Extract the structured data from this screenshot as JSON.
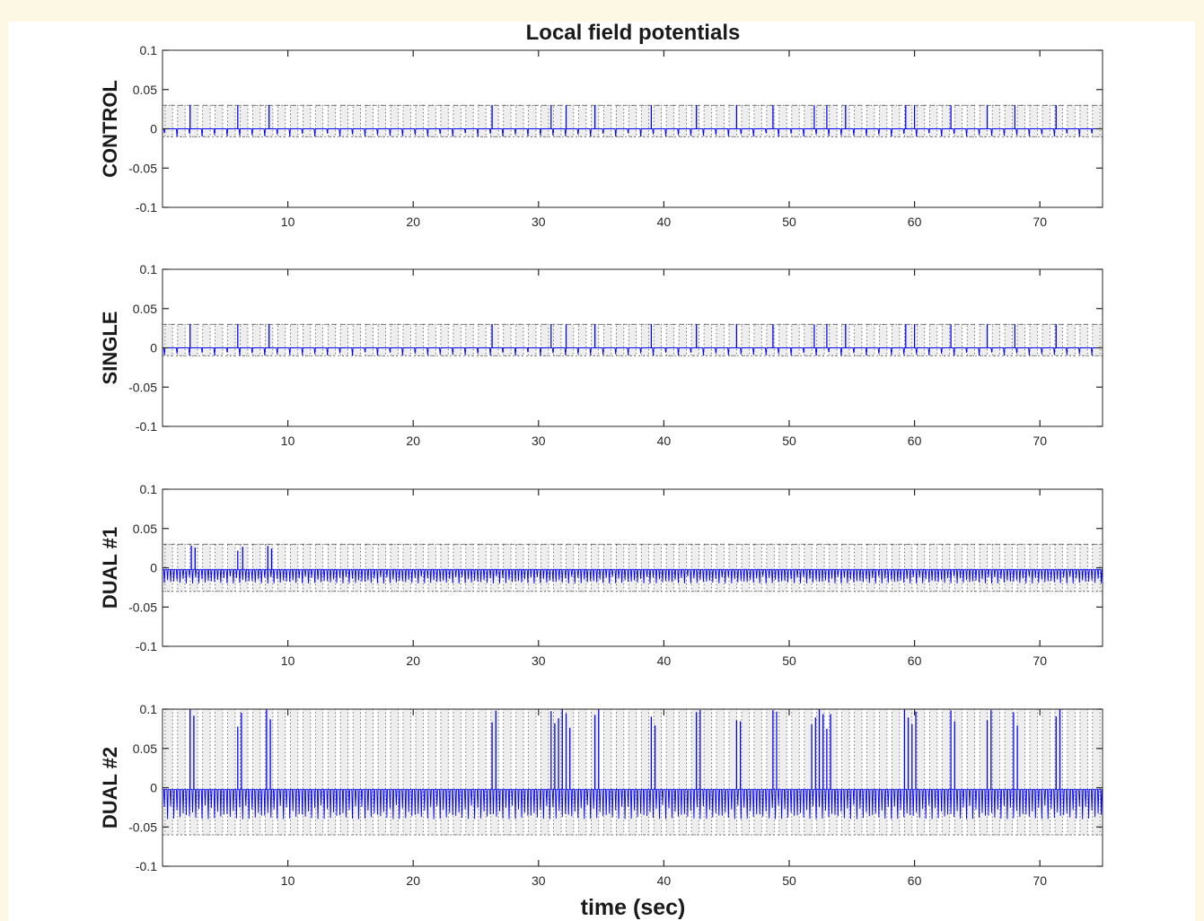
{
  "chart_data": {
    "type": "line",
    "title": "Local field potentials",
    "xlabel": "time (sec)",
    "xlim": [
      0,
      75
    ],
    "ylim": [
      -0.1,
      0.1
    ],
    "x_ticks": [
      10,
      20,
      30,
      40,
      50,
      60,
      70
    ],
    "y_ticks": [
      0.1,
      0.05,
      0,
      -0.05,
      -0.1
    ],
    "y_tick_labels": [
      "0.1",
      "0.05",
      "0",
      "-0.05",
      "-0.1"
    ],
    "grid": false,
    "colors": {
      "signal": "#0000ff",
      "stimulus": "#555555",
      "band": "#d9d9d9"
    },
    "panels": [
      {
        "ylabel": "CONTROL",
        "signal": {
          "baseline": 0,
          "neg_peak": -0.01,
          "pos_peak": 0.03,
          "neg_spike_period_sec": 1.0,
          "pos_spike_times": [
            2.2,
            6.0,
            8.5,
            26.3,
            31.0,
            32.2,
            34.5,
            39.0,
            42.6,
            45.8,
            48.7,
            52.0,
            53.0,
            54.5,
            59.3,
            60.0,
            62.9,
            65.8,
            68.0,
            71.3
          ]
        },
        "stimulus": {
          "on_level": 0.03,
          "off_level": -0.01,
          "period_sec": 1.0
        }
      },
      {
        "ylabel": "SINGLE",
        "signal": {
          "baseline": 0,
          "neg_peak": -0.01,
          "pos_peak": 0.03,
          "neg_spike_period_sec": 1.0,
          "pos_spike_times": [
            2.2,
            6.0,
            8.5,
            26.3,
            31.0,
            32.2,
            34.5,
            39.0,
            42.6,
            45.8,
            48.7,
            52.0,
            53.0,
            54.5,
            59.3,
            60.0,
            62.9,
            65.8,
            68.0,
            71.3
          ]
        },
        "stimulus": {
          "on_level": 0.03,
          "off_level": -0.01,
          "period_sec": 1.0
        }
      },
      {
        "ylabel": "DUAL #1",
        "signal": {
          "baseline": -0.002,
          "neg_peak": -0.02,
          "pos_peak": 0.028,
          "neg_spike_period_sec": 0.25,
          "pos_spike_times": [
            2.3,
            2.6,
            6.0,
            6.4,
            8.4,
            8.7
          ]
        },
        "stimulus": {
          "on_level": 0.03,
          "off_level": -0.03,
          "period_sec": 1.0
        }
      },
      {
        "ylabel": "DUAL #2",
        "signal": {
          "baseline": -0.002,
          "neg_peak": -0.04,
          "pos_peak": 0.1,
          "neg_spike_period_sec": 0.25,
          "pos_spike_times": [
            2.2,
            2.5,
            6.0,
            6.3,
            8.3,
            8.6,
            26.3,
            26.6,
            31.0,
            31.3,
            31.6,
            31.9,
            32.2,
            32.5,
            34.5,
            34.8,
            39.0,
            39.3,
            42.6,
            42.9,
            45.8,
            46.1,
            48.7,
            49.0,
            51.8,
            52.1,
            52.4,
            52.7,
            53.0,
            53.3,
            59.2,
            59.5,
            59.8,
            60.1,
            62.9,
            63.2,
            65.8,
            66.1,
            67.9,
            68.2,
            71.3,
            71.6
          ]
        },
        "stimulus": {
          "on_level": 0.1,
          "off_level": -0.06,
          "period_sec": 1.0
        }
      }
    ]
  }
}
